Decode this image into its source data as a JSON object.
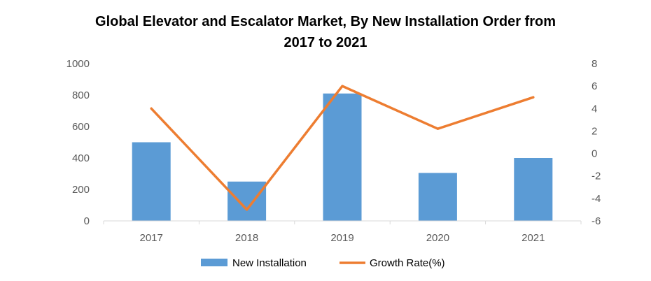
{
  "chart_data": {
    "type": "bar+line",
    "title_line1": "Global Elevator and Escalator Market, By New Installation Order from",
    "title_line2": "2017 to 2021",
    "categories": [
      "2017",
      "2018",
      "2019",
      "2020",
      "2021"
    ],
    "series": [
      {
        "name": "New Installation",
        "type": "bar",
        "axis": "left",
        "values": [
          500,
          250,
          810,
          305,
          400
        ],
        "color": "#5b9bd5"
      },
      {
        "name": "Growth Rate(%)",
        "type": "line",
        "axis": "right",
        "values": [
          4,
          -5,
          6,
          2.2,
          5
        ],
        "color": "#ed7d31"
      }
    ],
    "y_left": {
      "min": 0,
      "max": 1000,
      "ticks": [
        "0",
        "200",
        "400",
        "600",
        "800",
        "1000"
      ]
    },
    "y_right": {
      "min": -6,
      "max": 8,
      "ticks": [
        "-6",
        "-4",
        "-2",
        "0",
        "2",
        "4",
        "6",
        "8"
      ]
    },
    "grid": false,
    "legend_position": "bottom"
  }
}
